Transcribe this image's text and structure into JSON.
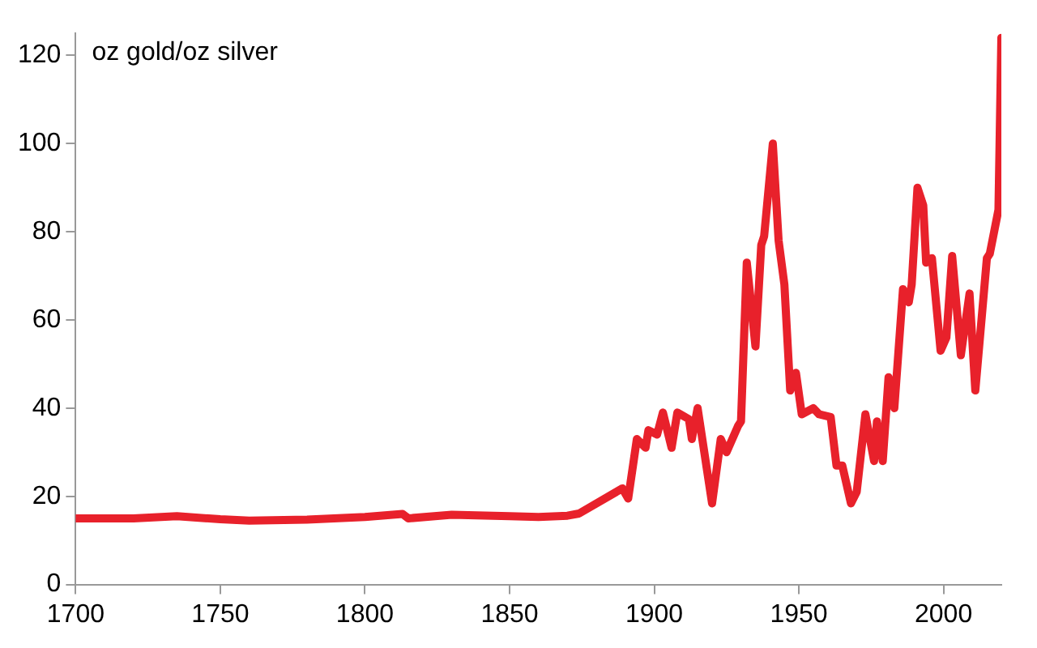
{
  "chart_data": {
    "type": "line",
    "annotations": [
      "oz gold/oz silver"
    ],
    "xlim": [
      1700,
      2020
    ],
    "xticks": [
      1700,
      1750,
      1800,
      1850,
      1900,
      1950,
      2000
    ],
    "ylim": [
      0,
      125
    ],
    "yticks": [
      0,
      20,
      40,
      60,
      80,
      100,
      120
    ],
    "grid": false,
    "legend": false,
    "marker": "none",
    "line_style": "solid",
    "x": [
      1700,
      1720,
      1735,
      1750,
      1760,
      1780,
      1800,
      1813,
      1815,
      1830,
      1850,
      1860,
      1870,
      1874,
      1889,
      1891,
      1894,
      1897,
      1898,
      1901,
      1903,
      1906,
      1908,
      1912,
      1913,
      1915,
      1920,
      1923,
      1925,
      1929,
      1930,
      1932,
      1935,
      1937,
      1938,
      1941,
      1943,
      1945,
      1947,
      1949,
      1951,
      1955,
      1957,
      1961,
      1963,
      1965,
      1968,
      1970,
      1973,
      1976,
      1977,
      1979,
      1981,
      1983,
      1986,
      1988,
      1989,
      1991,
      1993,
      1994,
      1996,
      1999,
      2001,
      2003,
      2006,
      2009,
      2011,
      2015,
      2016,
      2019,
      2020
    ],
    "series": [
      {
        "color": "#e8212b",
        "values": [
          15,
          15,
          15.5,
          14.8,
          14.5,
          14.7,
          15.3,
          16,
          15,
          15.8,
          15.5,
          15.3,
          15.6,
          16.1,
          21.8,
          19.5,
          33,
          31,
          35,
          34,
          39,
          31,
          39,
          37.5,
          33,
          40,
          18.4,
          33,
          30,
          36,
          37,
          73,
          54,
          77,
          79,
          100,
          78,
          68,
          44,
          48,
          38.6,
          40,
          38.6,
          38,
          27,
          27,
          18.4,
          21,
          38.6,
          28,
          37,
          28,
          47,
          40,
          67,
          64,
          68,
          90,
          86,
          73,
          74,
          53,
          56,
          74.5,
          52,
          66,
          44,
          74,
          75,
          85,
          124
        ]
      }
    ]
  }
}
